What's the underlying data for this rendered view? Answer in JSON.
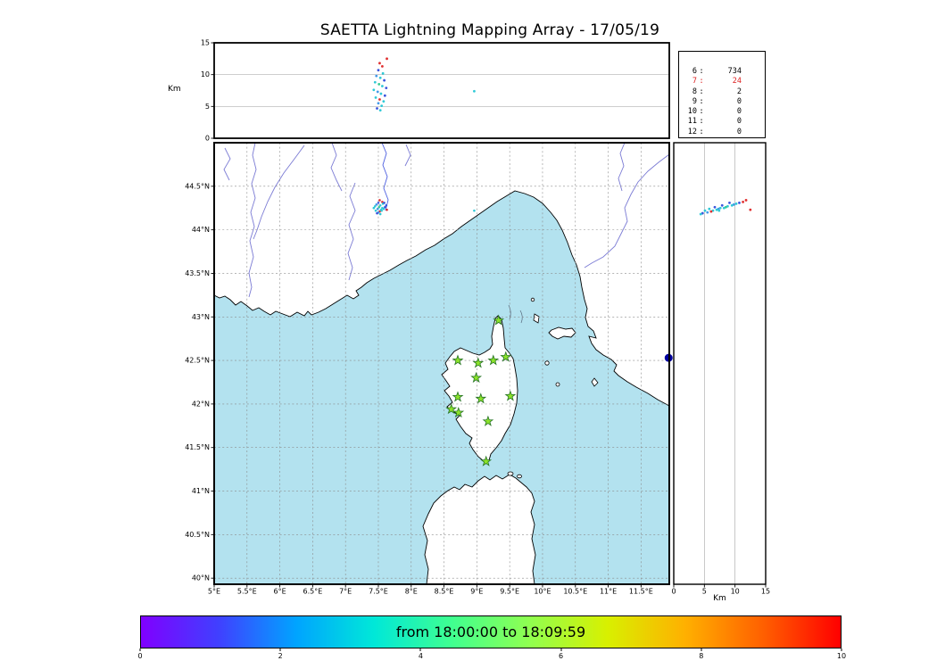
{
  "title": "SAETTA Lightning Mapping Array - 17/05/19",
  "axes": {
    "alt_label_top": "Km",
    "alt_label_right": "Km",
    "alt_ticks": [
      0,
      5,
      10,
      15
    ],
    "lon_ticks": [
      {
        "v": 5,
        "l": "5°E"
      },
      {
        "v": 5.5,
        "l": "5.5°E"
      },
      {
        "v": 6,
        "l": "6°E"
      },
      {
        "v": 6.5,
        "l": "6.5°E"
      },
      {
        "v": 7,
        "l": "7°E"
      },
      {
        "v": 7.5,
        "l": "7.5°E"
      },
      {
        "v": 8,
        "l": "8°E"
      },
      {
        "v": 8.5,
        "l": "8.5°E"
      },
      {
        "v": 9,
        "l": "9°E"
      },
      {
        "v": 9.5,
        "l": "9.5°E"
      },
      {
        "v": 10,
        "l": "10°E"
      },
      {
        "v": 10.5,
        "l": "10.5°E"
      },
      {
        "v": 11,
        "l": "11°E"
      },
      {
        "v": 11.5,
        "l": "11.5°E"
      }
    ],
    "lat_ticks": [
      {
        "v": 40,
        "l": "40°N"
      },
      {
        "v": 40.5,
        "l": "40.5°N"
      },
      {
        "v": 41,
        "l": "41°N"
      },
      {
        "v": 41.5,
        "l": "41.5°N"
      },
      {
        "v": 42,
        "l": "42°N"
      },
      {
        "v": 42.5,
        "l": "42.5°N"
      },
      {
        "v": 43,
        "l": "43°N"
      },
      {
        "v": 43.5,
        "l": "43.5°N"
      },
      {
        "v": 44,
        "l": "44°N"
      },
      {
        "v": 44.5,
        "l": "44.5°N"
      }
    ]
  },
  "station_counts": {
    "rows": [
      {
        "station": "6",
        "count": "734",
        "highlight": false
      },
      {
        "station": "7",
        "count": "24",
        "highlight": true
      },
      {
        "station": "8",
        "count": "2",
        "highlight": false
      },
      {
        "station": "9",
        "count": "0",
        "highlight": false
      },
      {
        "station": "10",
        "count": "0",
        "highlight": false
      },
      {
        "station": "11",
        "count": "0",
        "highlight": false
      },
      {
        "station": "12",
        "count": "0",
        "highlight": false
      }
    ],
    "highlight_color": "#dd2222"
  },
  "colorbar": {
    "label": "from 18:00:00 to 18:09:59",
    "ticks": [
      0,
      2,
      4,
      6,
      8,
      10
    ],
    "range": [
      0,
      10
    ],
    "gradient": [
      "#8000ff",
      "#4040ff",
      "#00a4ff",
      "#00e8d8",
      "#40ff90",
      "#90ff50",
      "#d8f000",
      "#ffb000",
      "#ff6000",
      "#ff0000"
    ]
  },
  "map_style": {
    "sea_color": "#b3e2ef",
    "land_color": "#ffffff",
    "river_color": "#7b7bd4",
    "grid_color": "#8a8a8a",
    "station_fill": "#8ce32a",
    "station_edge": "#267326"
  },
  "chart_data": {
    "type": "scatter",
    "title": "SAETTA Lightning Mapping Array - 17/05/19",
    "time_window": {
      "from": "18:00:00",
      "to": "18:09:59"
    },
    "map_panel": {
      "xlim": [
        5.0,
        11.93
      ],
      "ylim": [
        39.93,
        45.0
      ]
    },
    "alt_panels": {
      "label": "Km",
      "lim": [
        0,
        15
      ],
      "gridlines": [
        5,
        10
      ]
    },
    "station_count_histogram": {
      "stations": [
        6,
        7,
        8,
        9,
        10,
        11,
        12
      ],
      "counts": [
        734,
        24,
        2,
        0,
        0,
        0,
        0
      ]
    },
    "stations_lonlat": [
      [
        9.33,
        42.96
      ],
      [
        8.71,
        42.5
      ],
      [
        9.02,
        42.47
      ],
      [
        9.25,
        42.5
      ],
      [
        9.44,
        42.54
      ],
      [
        8.99,
        42.3
      ],
      [
        8.71,
        42.08
      ],
      [
        9.06,
        42.06
      ],
      [
        9.51,
        42.09
      ],
      [
        8.61,
        41.94
      ],
      [
        8.72,
        41.9
      ],
      [
        9.17,
        41.8
      ],
      [
        9.14,
        41.34
      ]
    ],
    "flashes": [
      [
        7.52,
        44.34,
        11.8,
        "#e03030"
      ],
      [
        7.56,
        44.32,
        11.3,
        "#e03030"
      ],
      [
        7.5,
        44.31,
        10.7,
        "#3a55dd"
      ],
      [
        7.57,
        44.3,
        10.2,
        "#2fc9d6"
      ],
      [
        7.47,
        44.29,
        9.8,
        "#4499e8"
      ],
      [
        7.53,
        44.28,
        9.5,
        "#2fc9d6"
      ],
      [
        7.59,
        44.31,
        9.1,
        "#3a55dd"
      ],
      [
        7.45,
        44.27,
        8.8,
        "#2fc9d6"
      ],
      [
        7.51,
        44.26,
        8.5,
        "#38c98f"
      ],
      [
        7.56,
        44.25,
        8.2,
        "#2fc9d6"
      ],
      [
        7.62,
        44.28,
        7.9,
        "#3a55dd"
      ],
      [
        7.43,
        44.25,
        7.6,
        "#2fc9d6"
      ],
      [
        7.49,
        44.24,
        7.3,
        "#4499e8"
      ],
      [
        7.54,
        44.23,
        7.0,
        "#2fc9d6"
      ],
      [
        7.6,
        44.26,
        6.7,
        "#3a55dd"
      ],
      [
        7.46,
        44.22,
        6.4,
        "#2fc9d6"
      ],
      [
        7.52,
        44.21,
        6.1,
        "#e03030"
      ],
      [
        7.58,
        44.24,
        5.8,
        "#2fc9d6"
      ],
      [
        7.5,
        44.2,
        5.5,
        "#4499e8"
      ],
      [
        7.55,
        44.22,
        5.1,
        "#2fc9d6"
      ],
      [
        7.48,
        44.19,
        4.7,
        "#3a55dd"
      ],
      [
        7.53,
        44.18,
        4.4,
        "#2fc9d6"
      ],
      [
        7.63,
        44.23,
        12.5,
        "#e03030"
      ],
      [
        8.96,
        44.22,
        7.4,
        "#2fc9d6"
      ]
    ],
    "edge_flash": {
      "lon": 11.92,
      "lat": 42.53,
      "alt": 0,
      "color": "#0000a0"
    }
  }
}
